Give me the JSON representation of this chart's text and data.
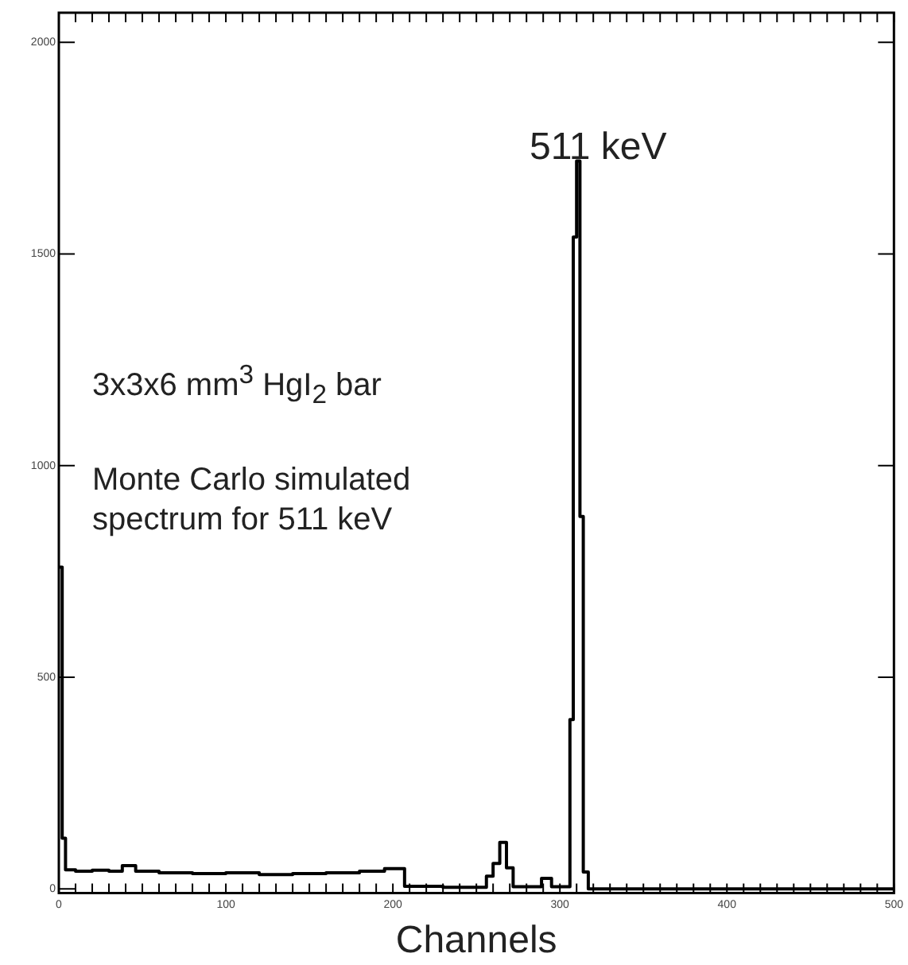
{
  "chart_data": {
    "type": "histogram",
    "xlabel": "Channels",
    "bins": [
      0,
      2,
      4,
      10,
      20,
      30,
      38,
      46,
      60,
      80,
      100,
      120,
      140,
      160,
      180,
      195,
      207,
      230,
      256,
      260,
      264,
      268,
      272,
      289,
      295,
      306,
      308,
      310,
      312,
      314,
      317,
      500
    ],
    "values": [
      760,
      120,
      45,
      42,
      44,
      42,
      55,
      42,
      38,
      36,
      38,
      34,
      36,
      38,
      42,
      48,
      6,
      4,
      30,
      60,
      110,
      50,
      5,
      25,
      5,
      400,
      1540,
      1720,
      880,
      40,
      0
    ],
    "color": "#000000",
    "xlim": [
      0,
      500
    ],
    "xticks": [
      0,
      100,
      200,
      300,
      400,
      500
    ],
    "ylim": [
      -10,
      2070
    ],
    "yticks": [
      0,
      500,
      1000,
      1500,
      2000
    ],
    "grid": false,
    "legend": false,
    "annotations": [
      "511 keV",
      "3x3x6 mm$^{3}$ HgI$_{2}$ bar",
      "Monte Carlo simulated spectrum for 511 keV"
    ]
  }
}
